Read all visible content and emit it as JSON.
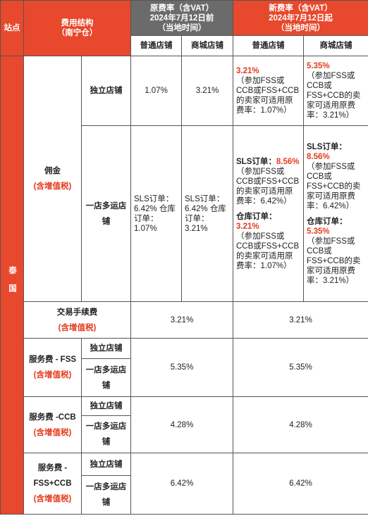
{
  "header": {
    "site": "站点",
    "fee_structure": "费用结构",
    "warehouse": "（南宁仓）",
    "old_rate": {
      "title": "原费率（含VAT）",
      "date": "2024年7月12日前",
      "note": "（当地时间）",
      "columns": [
        "普通店铺",
        "商城店铺"
      ]
    },
    "new_rate": {
      "title": "新费率（含VAT）",
      "date": "2024年7月12日起",
      "note": "（当地时间）",
      "columns": [
        "普通店铺",
        "商城店铺"
      ]
    }
  },
  "site": "泰国",
  "commission": {
    "label": "佣金",
    "vat": "(含增值税)",
    "standalone": {
      "label": "独立店铺",
      "old": [
        "1.07%",
        "3.21%"
      ],
      "new": [
        {
          "rate": "3.21%",
          "note": "（参加FSS或CCB或FSS+CCB的卖家可适用原费率：1.07%）"
        },
        {
          "rate": "5.35%",
          "note": "（参加FSS或CCB或FSS+CCB的卖家可适用原费率：3.21%）"
        }
      ]
    },
    "multi": {
      "label": "一店多运店铺",
      "old": [
        [
          "SLS订单：6.42%",
          "仓库订单：1.07%"
        ],
        [
          "SLS订单：6.42%",
          "仓库订单：3.21%"
        ]
      ],
      "new": [
        {
          "sls_label": "SLS订单：",
          "sls_rate": "8.56%",
          "sls_note": "（参加FSS或CCB或FSS+CCB的卖家可适用原费率：6.42%）",
          "wh_label": "仓库订单：",
          "wh_rate": "3.21%",
          "wh_note": "（参加FSS或CCB或FSS+CCB的卖家可适用原费率：1.07%）"
        },
        {
          "sls_label": "SLS订单：",
          "sls_rate": "8.56%",
          "sls_note": "（参加FSS或CCB或FSS+CCB的卖家可适用原费率：6.42%）",
          "wh_label": "仓库订单：",
          "wh_rate": "5.35%",
          "wh_note": "（参加FSS或CCB或FSS+CCB的卖家可适用原费率：3.21%）"
        }
      ]
    }
  },
  "transaction_fee": {
    "label": "交易手续费",
    "vat": "(含增值税)",
    "old": "3.21%",
    "new": "3.21%"
  },
  "service_fees": [
    {
      "label": "服务费 - FSS",
      "vat": "(含增值税)",
      "stores": [
        "独立店铺",
        "一店多运店铺"
      ],
      "old": "5.35%",
      "new": "5.35%"
    },
    {
      "label": "服务费 -CCB",
      "vat": "(含增值税)",
      "stores": [
        "独立店铺",
        "一店多运店铺"
      ],
      "old": "4.28%",
      "new": "4.28%"
    },
    {
      "label": "服务费 - FSS+CCB",
      "vat": "(含增值税)",
      "stores": [
        "独立店铺",
        "一店多运店铺"
      ],
      "old": "6.42%",
      "new": "6.42%"
    }
  ]
}
